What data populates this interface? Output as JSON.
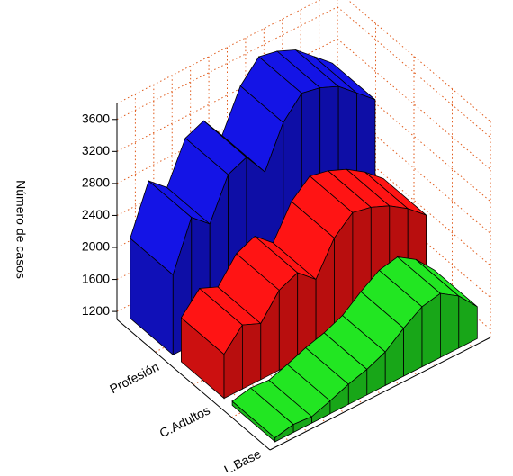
{
  "chart_data": {
    "type": "ribbon3d",
    "y_label": "Número de casos",
    "categories": [
      null,
      null,
      null,
      null,
      null,
      null,
      null,
      null,
      null,
      null,
      null,
      null
    ],
    "series": [
      {
        "name": "Profesión",
        "color": "#1414e6",
        "values": [
          2100,
          2700,
          2500,
          3000,
          3100,
          2800,
          3300,
          3550,
          3500,
          3400,
          3200,
          3000
        ]
      },
      {
        "name": "C.Adultos",
        "color": "#ff1414",
        "values": [
          1650,
          1900,
          1800,
          2100,
          2200,
          2000,
          2400,
          2600,
          2550,
          2450,
          2300,
          2100
        ]
      },
      {
        "name": "L.Base",
        "color": "#22e622",
        "values": [
          1150,
          1200,
          1180,
          1260,
          1350,
          1420,
          1520,
          1700,
          1850,
          1900,
          1750,
          1500
        ]
      }
    ],
    "ylim": [
      1100,
      3800
    ],
    "yticks": [
      1200,
      1600,
      2000,
      2400,
      2800,
      3200,
      3600
    ],
    "grid": true
  }
}
